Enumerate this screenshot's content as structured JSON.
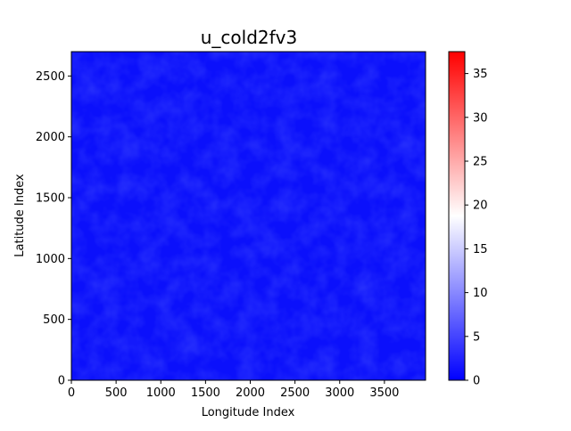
{
  "chart_data": {
    "type": "heatmap",
    "title": "u_cold2fv3",
    "xlabel": "Longitude Index",
    "ylabel": "Latitude Index",
    "xlim": [
      0,
      3960
    ],
    "ylim": [
      0,
      2700
    ],
    "x_ticks": [
      0,
      500,
      1000,
      1500,
      2000,
      2500,
      3000,
      3500
    ],
    "y_ticks": [
      0,
      500,
      1000,
      1500,
      2000,
      2500
    ],
    "colorbar": {
      "colormap": "bwr",
      "range": [
        0,
        37.5
      ],
      "ticks": [
        0,
        5,
        10,
        15,
        20,
        25,
        30,
        35
      ],
      "colors": {
        "low": "#0000ff",
        "mid": "#ffffff",
        "high": "#ff0000"
      }
    },
    "field_description_value_approx": 0.5,
    "grid": false
  }
}
